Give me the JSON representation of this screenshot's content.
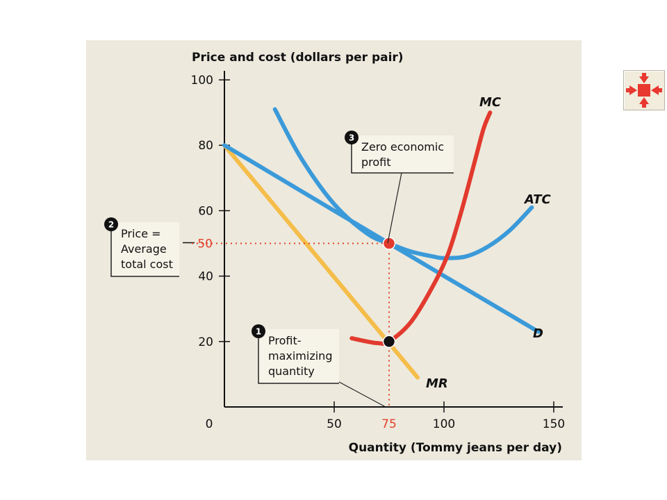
{
  "chart_data": {
    "type": "line",
    "ylabel": "Price and cost (dollars per pair)",
    "xlabel": "Quantity (Tommy jeans per day)",
    "xlim": [
      0,
      150
    ],
    "ylim": [
      0,
      100
    ],
    "x_ticks": [
      "0",
      "50",
      "75",
      "100",
      "150"
    ],
    "y_ticks": [
      "20",
      "40",
      "50",
      "60",
      "80",
      "100"
    ],
    "series": [
      {
        "name": "D",
        "color": "#3b9ad9",
        "points": [
          [
            0,
            80
          ],
          [
            75,
            50
          ],
          [
            143,
            23
          ]
        ]
      },
      {
        "name": "MR",
        "color": "#f5bd49",
        "points": [
          [
            0,
            80
          ],
          [
            88,
            9
          ]
        ]
      },
      {
        "name": "ATC",
        "color": "#3b9ad9",
        "points": [
          [
            23,
            91
          ],
          [
            35,
            76
          ],
          [
            50,
            62
          ],
          [
            65,
            53
          ],
          [
            75,
            50
          ],
          [
            85,
            47.5
          ],
          [
            95,
            46
          ],
          [
            100,
            45.5
          ],
          [
            110,
            46
          ],
          [
            120,
            49
          ],
          [
            130,
            54
          ],
          [
            140,
            61
          ]
        ]
      },
      {
        "name": "MC",
        "color": "#e23a2e",
        "points": [
          [
            58,
            21
          ],
          [
            65,
            20
          ],
          [
            70,
            19.5
          ],
          [
            75,
            20
          ],
          [
            85,
            26
          ],
          [
            95,
            37
          ],
          [
            102,
            47
          ],
          [
            108,
            60
          ],
          [
            114,
            75
          ],
          [
            118,
            85
          ],
          [
            121,
            90
          ]
        ]
      }
    ],
    "key_points": [
      {
        "x": 75,
        "y": 50,
        "color": "#e23a2e"
      },
      {
        "x": 75,
        "y": 20,
        "color": "#111111"
      }
    ],
    "reference_value": {
      "label": "50",
      "x": 75,
      "y": 50
    }
  },
  "annotations": [
    {
      "number": "1",
      "lines": [
        "Profit-",
        "maximizing",
        "quantity"
      ]
    },
    {
      "number": "2",
      "lines": [
        "Price =",
        "Average",
        "total cost"
      ]
    },
    {
      "number": "3",
      "lines": [
        "Zero economic",
        "profit"
      ]
    }
  ],
  "nav_icon": {
    "name": "shrink-icon",
    "color": "#e8382f"
  }
}
